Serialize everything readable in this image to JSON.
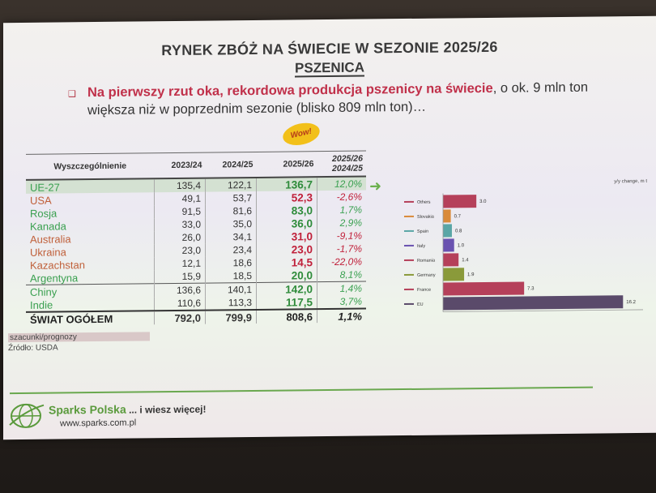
{
  "slide": {
    "title": "RYNEK ZBÓŻ NA ŚWIECIE W SEZONIE 2025/26",
    "subtitle": "PSZENICA",
    "lead_red": "Na pierwszy rzut oka, rekordowa produkcja pszenicy na świecie",
    "lead_rest": ", o ok. 9 mln ton większa niż w poprzednim sezonie (blisko 809 mln ton)…",
    "wow": "Wow!"
  },
  "table": {
    "headers": [
      "Wyszczególnienie",
      "2023/24",
      "2024/25",
      "2025/26",
      "2025/26",
      "2024/25"
    ],
    "rows": [
      {
        "name": "UE-27",
        "v1": "135,4",
        "v2": "122,1",
        "v3": "136,7",
        "pct": "12,0%"
      },
      {
        "name": "USA",
        "v1": "49,1",
        "v2": "53,7",
        "v3": "52,3",
        "pct": "-2,6%"
      },
      {
        "name": "Rosja",
        "v1": "91,5",
        "v2": "81,6",
        "v3": "83,0",
        "pct": "1,7%"
      },
      {
        "name": "Kanada",
        "v1": "33,0",
        "v2": "35,0",
        "v3": "36,0",
        "pct": "2,9%"
      },
      {
        "name": "Australia",
        "v1": "26,0",
        "v2": "34,1",
        "v3": "31,0",
        "pct": "-9,1%"
      },
      {
        "name": "Ukraina",
        "v1": "23,0",
        "v2": "23,4",
        "v3": "23,0",
        "pct": "-1,7%"
      },
      {
        "name": "Kazachstan",
        "v1": "12,1",
        "v2": "18,6",
        "v3": "14,5",
        "pct": "-22,0%"
      },
      {
        "name": "Argentyna",
        "v1": "15,9",
        "v2": "18,5",
        "v3": "20,0",
        "pct": "8,1%"
      },
      {
        "name": "Chiny",
        "v1": "136,6",
        "v2": "140,1",
        "v3": "142,0",
        "pct": "1,4%"
      },
      {
        "name": "Indie",
        "v1": "110,6",
        "v2": "113,3",
        "v3": "117,5",
        "pct": "3,7%"
      },
      {
        "name": "ŚWIAT OGÓŁEM",
        "v1": "792,0",
        "v2": "799,9",
        "v3": "808,6",
        "pct": "1,1%"
      }
    ],
    "note1": "szacunki/prognozy",
    "note2": "Źródło: USDA"
  },
  "chart_data": {
    "type": "bar",
    "orientation": "horizontal",
    "title": "y/y change, m t",
    "categories": [
      "Others",
      "Slovakia",
      "Spain",
      "Italy",
      "Romania",
      "Germany",
      "France",
      "EU"
    ],
    "values": [
      3.0,
      0.7,
      0.8,
      1.0,
      1.4,
      1.9,
      7.3,
      16.2
    ],
    "value_labels": [
      "3.0",
      "0.7",
      "0.8",
      "1.0",
      "1.4",
      "1.9",
      "7.3",
      "16.2"
    ],
    "xlim": [
      0,
      18
    ],
    "ticks": [
      "0.0",
      "3.0",
      "6.0",
      "9.0",
      "12.0",
      "15.0",
      "1"
    ],
    "colors": [
      "#b5405a",
      "#d98a3a",
      "#5aa6a6",
      "#6a52b0",
      "#b5405a",
      "#8a9a3a",
      "#b5405a",
      "#5a4a6a"
    ]
  },
  "footer": {
    "brand": "Sparks Polska",
    "tagline": " ... i wiesz więcej!",
    "url": "www.sparks.com.pl"
  }
}
